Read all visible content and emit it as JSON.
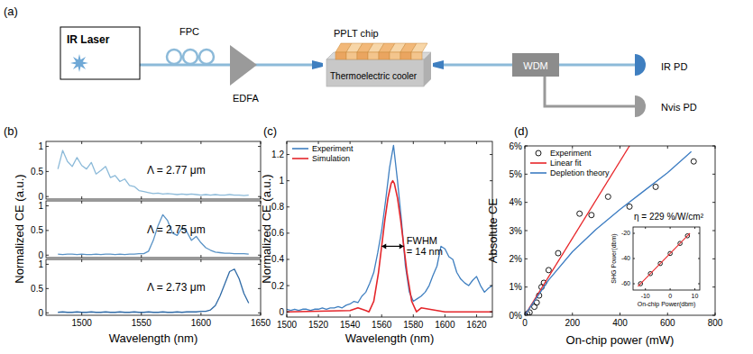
{
  "diagram": {
    "panel": "(a)",
    "nodes": [
      {
        "label": "IR Laser"
      },
      {
        "label": "FPC"
      },
      {
        "label": "EDFA"
      },
      {
        "label": "PPLT chip"
      },
      {
        "label": "Thermoelectric cooler"
      },
      {
        "label": "WDM"
      },
      {
        "label": "IR PD"
      },
      {
        "label": "Nvis PD"
      }
    ]
  },
  "chart_data": [
    {
      "type": "line",
      "panel": "(b)",
      "x_label": "Wavelength (nm)",
      "y_label": "Normalized CE (a.u.)",
      "xlim": [
        1470,
        1650
      ],
      "xticks": [
        1500,
        1550,
        1600,
        1650
      ],
      "ylim": [
        -0.05,
        1.1
      ],
      "yticks": [
        0,
        0.5,
        1
      ],
      "x": [
        1480,
        1484,
        1488,
        1492,
        1496,
        1500,
        1504,
        1508,
        1512,
        1516,
        1520,
        1524,
        1528,
        1532,
        1536,
        1540,
        1544,
        1548,
        1552,
        1556,
        1560,
        1564,
        1568,
        1572,
        1576,
        1580,
        1584,
        1588,
        1592,
        1596,
        1600,
        1604,
        1608,
        1612,
        1616,
        1620,
        1624,
        1628,
        1632,
        1636,
        1640
      ],
      "series": [
        {
          "name": "Λ = 2.77 μm",
          "color": "#8cbad9",
          "values": [
            0.55,
            0.92,
            0.7,
            0.6,
            0.78,
            0.62,
            0.55,
            0.68,
            0.45,
            0.52,
            0.6,
            0.38,
            0.42,
            0.3,
            0.35,
            0.22,
            0.2,
            0.12,
            0.1,
            0.08,
            0.06,
            0.07,
            0.05,
            0.06,
            0.05,
            0.04,
            0.05,
            0.04,
            0.05,
            0.04,
            0.03,
            0.04,
            0.03,
            0.04,
            0.03,
            0.03,
            0.04,
            0.03,
            0.03,
            0.02,
            0.03
          ]
        },
        {
          "name": "Λ = 2.75 μm",
          "color": "#5a93c6",
          "values": [
            0.02,
            0.01,
            0.02,
            0.02,
            0.01,
            0.02,
            0.01,
            0.01,
            0.02,
            0.01,
            0.02,
            0.02,
            0.01,
            0.02,
            0.01,
            0.02,
            0.02,
            0.03,
            0.03,
            0.08,
            0.3,
            0.6,
            0.82,
            0.7,
            0.45,
            0.4,
            0.55,
            0.48,
            0.3,
            0.38,
            0.25,
            0.15,
            0.1,
            0.06,
            0.05,
            0.04,
            0.04,
            0.03,
            0.03,
            0.03,
            0.02
          ]
        },
        {
          "name": "Λ = 2.73 μm",
          "color": "#2f6aa6",
          "values": [
            0.01,
            0.02,
            0.01,
            0.01,
            0.02,
            0.01,
            0.01,
            0.02,
            0.01,
            0.01,
            0.02,
            0.01,
            0.01,
            0.02,
            0.01,
            0.01,
            0.02,
            0.01,
            0.01,
            0.02,
            0.01,
            0.01,
            0.02,
            0.01,
            0.01,
            0.02,
            0.01,
            0.02,
            0.02,
            0.02,
            0.03,
            0.03,
            0.06,
            0.15,
            0.35,
            0.6,
            0.85,
            0.9,
            0.7,
            0.4,
            0.2
          ]
        }
      ]
    },
    {
      "type": "line",
      "panel": "(c)",
      "x_label": "Wavelength (nm)",
      "y_label": "Normalized CE (a.u.)",
      "xlim": [
        1500,
        1630
      ],
      "xticks": [
        1500,
        1520,
        1540,
        1560,
        1580,
        1600,
        1620
      ],
      "ylim": [
        -0.04,
        1.3
      ],
      "yticks": [
        0,
        0.2,
        0.4,
        0.6,
        0.8,
        1,
        1.2
      ],
      "legend": "upper left",
      "series": [
        {
          "name": "Experiment",
          "color": "#3f7fc0",
          "x": [
            1500,
            1502.5,
            1505,
            1507.5,
            1510,
            1512.5,
            1515,
            1517.5,
            1520,
            1522.5,
            1525,
            1527.5,
            1530,
            1532.5,
            1535,
            1537.5,
            1540,
            1542.5,
            1545,
            1547.5,
            1550,
            1552.5,
            1555,
            1557.5,
            1560,
            1562.5,
            1565,
            1567.5,
            1570,
            1572.5,
            1575,
            1577.5,
            1580,
            1582.5,
            1585,
            1587.5,
            1590,
            1592.5,
            1595,
            1597.5,
            1600,
            1602.5,
            1605,
            1607.5,
            1610,
            1612.5,
            1615,
            1617.5,
            1620,
            1622.5,
            1625,
            1627.5,
            1630
          ],
          "values": [
            0.02,
            0.01,
            0.02,
            0.01,
            0.02,
            0.02,
            0.01,
            0.02,
            0.02,
            0.03,
            0.02,
            0.03,
            0.03,
            0.04,
            0.03,
            0.05,
            0.06,
            0.08,
            0.07,
            0.12,
            0.15,
            0.22,
            0.3,
            0.45,
            0.62,
            0.85,
            1.1,
            1.27,
            1.0,
            0.7,
            0.35,
            0.15,
            0.08,
            0.1,
            0.12,
            0.15,
            0.2,
            0.28,
            0.35,
            0.5,
            0.48,
            0.42,
            0.4,
            0.3,
            0.25,
            0.22,
            0.2,
            0.24,
            0.27,
            0.2,
            0.15,
            0.18,
            0.2
          ]
        },
        {
          "name": "Simulation",
          "color": "#e4262b",
          "x": [
            1500,
            1540,
            1545,
            1550,
            1552,
            1555,
            1558,
            1560,
            1562,
            1564,
            1566,
            1567,
            1568,
            1570,
            1572,
            1574,
            1576,
            1579,
            1582,
            1585,
            1590,
            1595,
            1600,
            1630
          ],
          "values": [
            0,
            0.01,
            0.03,
            0.01,
            0,
            0.08,
            0.3,
            0.5,
            0.7,
            0.87,
            0.98,
            1,
            0.98,
            0.87,
            0.7,
            0.5,
            0.3,
            0.08,
            0,
            0.03,
            0.02,
            0.01,
            0,
            0
          ]
        }
      ],
      "annotations": [
        {
          "lines": [
            "FWHM",
            "= 14 nm"
          ],
          "x": 1560,
          "x2": 1574,
          "y": 0.5
        }
      ]
    },
    {
      "type": "scatter",
      "panel": "(d)",
      "x_label": "On-chip power (mW)",
      "y_label": "Absolute CE",
      "xlim": [
        0,
        800
      ],
      "xticks": [
        0,
        200,
        400,
        600,
        800
      ],
      "ylim": [
        0,
        6
      ],
      "yticks": [
        {
          "value": 0,
          "label": "0%"
        },
        {
          "value": 1,
          "label": "1%"
        },
        {
          "value": 2,
          "label": "2%"
        },
        {
          "value": 3,
          "label": "3%"
        },
        {
          "value": 4,
          "label": "4%"
        },
        {
          "value": 5,
          "label": "5%"
        },
        {
          "value": 6,
          "label": "6%"
        }
      ],
      "legend": "upper left",
      "series": [
        {
          "name": "Experiment",
          "type": "scatter",
          "marker": "circle",
          "color": "#000000",
          "x": [
            0,
            10,
            20,
            40,
            50,
            60,
            70,
            80,
            100,
            140,
            230,
            280,
            350,
            440,
            550,
            710
          ],
          "values": [
            0,
            0.05,
            0.1,
            0.3,
            0.45,
            0.7,
            1.0,
            1.15,
            1.6,
            2.2,
            3.6,
            3.55,
            4.2,
            3.85,
            4.55,
            5.45
          ]
        },
        {
          "name": "Linear fit",
          "type": "line",
          "color": "#e8262a",
          "x": [
            0,
            440
          ],
          "values": [
            0,
            6
          ]
        },
        {
          "name": "Depletion theory",
          "type": "line",
          "color": "#3c7cc2",
          "x": [
            0,
            100,
            200,
            300,
            400,
            500,
            600,
            700
          ],
          "values": [
            0,
            1.25,
            2.25,
            3.05,
            3.75,
            4.4,
            5.05,
            5.8
          ]
        }
      ],
      "annotations": [
        {
          "text": "η = 229 %/W/cm²"
        }
      ]
    },
    {
      "type": "scatter",
      "x_label": "On-chip Power(dbm)",
      "y_label": "SHG Power(dbm)",
      "xlim": [
        -15,
        12
      ],
      "xticks": [
        -10,
        0,
        10
      ],
      "ylim": [
        -65,
        -15
      ],
      "yticks": [
        -60,
        -40,
        -20
      ],
      "series": [
        {
          "type": "scatter",
          "marker": "circle",
          "color": "#000000",
          "x": [
            -12,
            -8,
            -4,
            0,
            4,
            7
          ],
          "values": [
            -60,
            -52,
            -44,
            -36,
            -28,
            -22
          ]
        },
        {
          "type": "line",
          "color": "#e8262a",
          "x": [
            -13,
            8
          ],
          "values": [
            -62,
            -20
          ]
        }
      ]
    }
  ]
}
